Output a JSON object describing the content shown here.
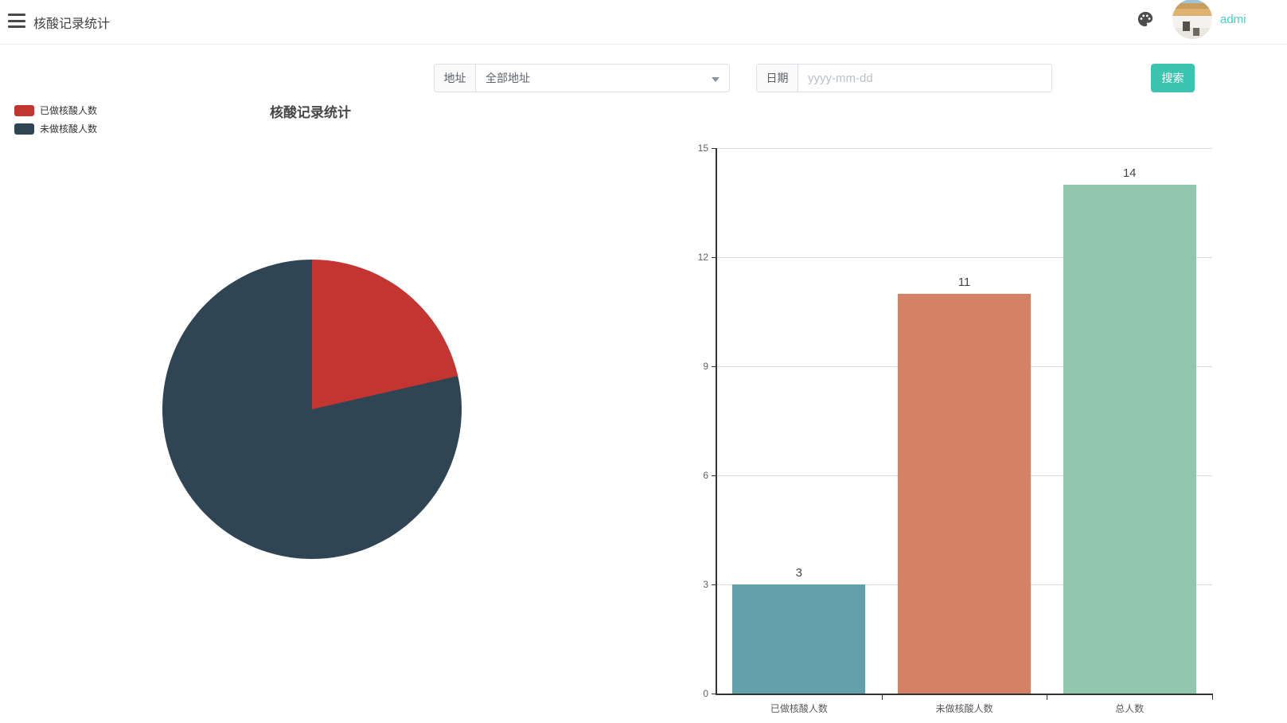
{
  "header": {
    "title": "核酸记录统计",
    "username": "admi",
    "username_color": "#3fd6c1"
  },
  "filters": {
    "address_label": "地址",
    "address_value": "全部地址",
    "date_label": "日期",
    "date_placeholder": "yyyy-mm-dd",
    "search_button": "搜索",
    "search_button_color": "#3bc5b1"
  },
  "icons": {
    "menu": "hamburger-menu",
    "theme": "palette",
    "dropdown": "caret-down"
  },
  "chart_data": [
    {
      "type": "pie",
      "title": "核酸记录统计",
      "legend_position": "top-left",
      "slices": [
        {
          "label": "已做核酸人数",
          "value": 3,
          "color": "#c23531"
        },
        {
          "label": "未做核酸人数",
          "value": 11,
          "color": "#2f4554"
        }
      ]
    },
    {
      "type": "bar",
      "categories": [
        "已做核酸人数",
        "未做核酸人数",
        "总人数"
      ],
      "values": [
        3,
        11,
        14
      ],
      "colors": [
        "#61a0a8",
        "#d48265",
        "#91c7ae"
      ],
      "ylim": [
        0,
        15
      ],
      "ytick_step": 3,
      "grid": true,
      "value_labels_shown": true
    }
  ]
}
